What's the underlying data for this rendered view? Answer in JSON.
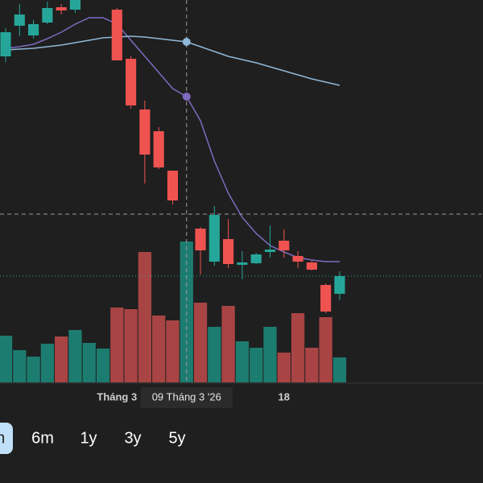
{
  "chart_data": {
    "type": "candlestick",
    "open": [
      410,
      448,
      436,
      452,
      471,
      468,
      null,
      null,
      468,
      407,
      344,
      317,
      268,
      null,
      196,
      155,
      183,
      151,
      153,
      167,
      181,
      162,
      154,
      126,
      115
    ],
    "high": [
      445,
      475,
      455,
      478,
      475,
      480,
      null,
      null,
      470,
      410,
      355,
      322,
      268,
      null,
      198,
      224,
      208,
      168,
      166,
      200,
      195,
      168,
      156,
      128,
      143
    ],
    "low": [
      403,
      435,
      432,
      450,
      462,
      464,
      null,
      null,
      405,
      345,
      252,
      270,
      226,
      null,
      139,
      150,
      147,
      133,
      152,
      160,
      160,
      147,
      144,
      91,
      107
    ],
    "close": [
      440,
      462,
      450,
      470,
      467,
      480,
      null,
      null,
      405,
      349,
      288,
      272,
      231,
      null,
      169,
      213,
      152,
      154,
      164,
      170,
      169,
      155,
      145,
      93,
      137
    ],
    "up_color": "#26a69a",
    "down_color": "#ef5350",
    "volume": {
      "values": [
        58,
        40,
        32,
        48,
        57,
        65,
        49,
        42,
        93,
        91,
        162,
        83,
        77,
        175,
        99,
        69,
        95,
        51,
        43,
        69,
        37,
        86,
        43,
        81,
        31
      ],
      "colors": [
        "#1d7c70",
        "#1d7c70",
        "#1d7c70",
        "#1d7c70",
        "#a94444",
        "#1d7c70",
        "#1d7c70",
        "#1d7c70",
        "#a94444",
        "#a94444",
        "#a94444",
        "#a94444",
        "#a94444",
        "#1d7c70",
        "#a94444",
        "#1d7c70",
        "#a94444",
        "#1d7c70",
        "#1d7c70",
        "#1d7c70",
        "#a94444",
        "#a94444",
        "#a94444",
        "#a94444",
        "#1d7c70"
      ],
      "ylim": [
        0,
        475
      ]
    },
    "series": [
      {
        "color": "#7e6bbf",
        "values": [
          420,
          422,
          425,
          432,
          440,
          450,
          458,
          458,
          450,
          430,
          410,
          390,
          370,
          360,
          330,
          280,
          240,
          210,
          190,
          175,
          167,
          160,
          157,
          155,
          155
        ]
      },
      {
        "color": "#8fb8d8",
        "values": [
          418,
          419,
          420,
          422,
          424,
          427,
          430,
          433,
          434,
          435,
          434,
          432,
          430,
          428,
          422,
          416,
          410,
          406,
          402,
          397,
          392,
          387,
          382,
          378,
          374
        ]
      }
    ],
    "ylim": [
      0,
      480
    ],
    "xlim": [
      -0.405,
      34.3
    ],
    "xticks": [
      {
        "value": 8,
        "label": "Tháng 3"
      },
      {
        "value": 20,
        "label": "18"
      }
    ],
    "crosshair": {
      "index": 13,
      "label": "09 Tháng 3 '26",
      "price": 214
    },
    "ranges": [
      "m",
      "6m",
      "1y",
      "3y",
      "5y"
    ],
    "selected_range": 0
  }
}
